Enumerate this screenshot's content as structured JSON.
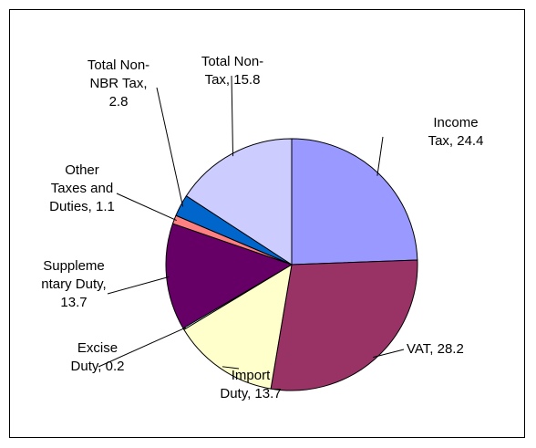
{
  "chart_data": {
    "type": "pie",
    "values": [
      24.4,
      28.2,
      13.7,
      0.2,
      13.7,
      1.1,
      2.8,
      15.8
    ],
    "value_labels": [
      "Income\nTax, 24.4",
      "VAT, 28.2",
      "Import\nDuty, 13.7",
      "Excise\nDuty, 0.2",
      "Suppleme\nntary Duty,\n13.7",
      "Other\nTaxes and\nDuties, 1.1",
      "Total Non-\nNBR Tax,\n2.8",
      "Total Non-\nTax, 15.8"
    ],
    "colors": [
      "#9999ff",
      "#993366",
      "#ffffcc",
      "#ccffff",
      "#660066",
      "#ff8080",
      "#0066cc",
      "#ccccff"
    ]
  }
}
